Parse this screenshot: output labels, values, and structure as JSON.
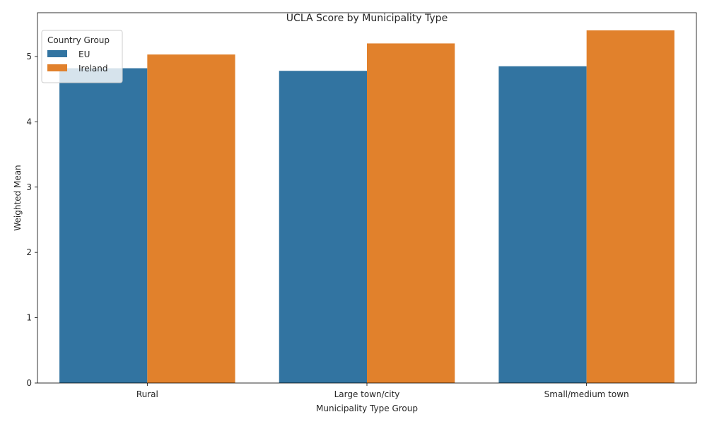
{
  "chart_data": {
    "type": "bar",
    "title": "UCLA Score by Municipality Type",
    "xlabel": "Municipality Type Group",
    "ylabel": "Weighted Mean",
    "categories": [
      "Rural",
      "Large town/city",
      "Small/medium town"
    ],
    "series": [
      {
        "name": "EU",
        "values": [
          4.82,
          4.78,
          4.85
        ],
        "color": "#3274a1"
      },
      {
        "name": "Ireland",
        "values": [
          5.03,
          5.2,
          5.4
        ],
        "color": "#e1812c"
      }
    ],
    "ylim": [
      0,
      5.67
    ],
    "yticks": [
      0,
      1,
      2,
      3,
      4,
      5
    ],
    "grid": false,
    "legend": {
      "title": "Country Group",
      "placement": "top-left"
    }
  }
}
